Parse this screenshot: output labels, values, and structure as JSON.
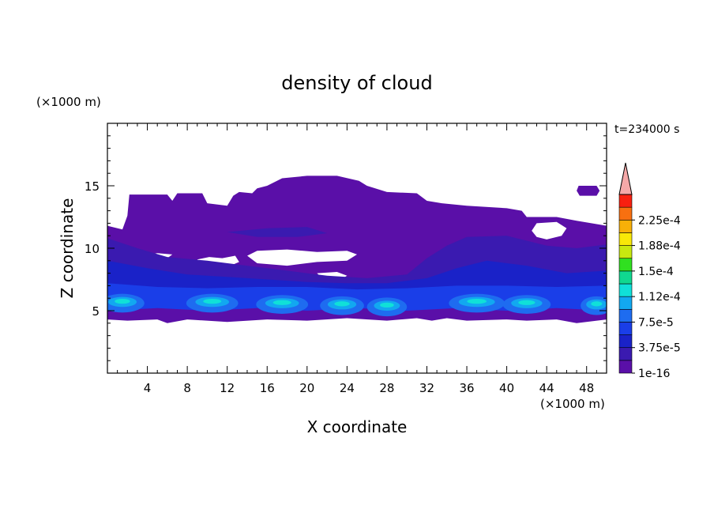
{
  "chart_data": {
    "type": "heatmap",
    "title": "density of cloud",
    "time_label": "t=234000 s",
    "xlabel": "X coordinate",
    "ylabel": "Z coordinate",
    "x_unit": "(×1000 m)",
    "y_unit": "(×1000 m)",
    "xlim": [
      0,
      50
    ],
    "ylim": [
      0,
      20
    ],
    "x_ticks": [
      4,
      8,
      12,
      16,
      20,
      24,
      28,
      32,
      36,
      40,
      44,
      48
    ],
    "y_ticks": [
      5,
      10,
      15
    ],
    "x_tick_labels": [
      "4",
      "8",
      "12",
      "16",
      "20",
      "24",
      "28",
      "32",
      "36",
      "40",
      "44",
      "48"
    ],
    "y_tick_labels": [
      "5",
      "10",
      "15"
    ],
    "colorbar": {
      "levels": [
        {
          "value": 1e-16,
          "color": "#5a0fa8"
        },
        {
          "value": 1.87e-05,
          "color": "#3a1ab0"
        },
        {
          "value": 3.75e-05,
          "color": "#1a22c8"
        },
        {
          "value": 5.62e-05,
          "color": "#1a3ee8"
        },
        {
          "value": 7.5e-05,
          "color": "#1e6cf0"
        },
        {
          "value": 9.37e-05,
          "color": "#12a8f0"
        },
        {
          "value": 0.000112,
          "color": "#10e0d8"
        },
        {
          "value": 0.000131,
          "color": "#10d890"
        },
        {
          "value": 0.00015,
          "color": "#30e020"
        },
        {
          "value": 0.000169,
          "color": "#c8e810"
        },
        {
          "value": 0.000188,
          "color": "#f8e808"
        },
        {
          "value": 0.000206,
          "color": "#f8b008"
        },
        {
          "value": 0.000225,
          "color": "#f87010"
        },
        {
          "value": 0.000244,
          "color": "#f82010"
        }
      ],
      "tick_labels": [
        "1e-16",
        "3.75e-5",
        "7.5e-5",
        "1.12e-4",
        "1.5e-4",
        "1.88e-4",
        "2.25e-4"
      ],
      "overflow_color": "#f5a8a8"
    },
    "background_color": "#ffffff"
  }
}
